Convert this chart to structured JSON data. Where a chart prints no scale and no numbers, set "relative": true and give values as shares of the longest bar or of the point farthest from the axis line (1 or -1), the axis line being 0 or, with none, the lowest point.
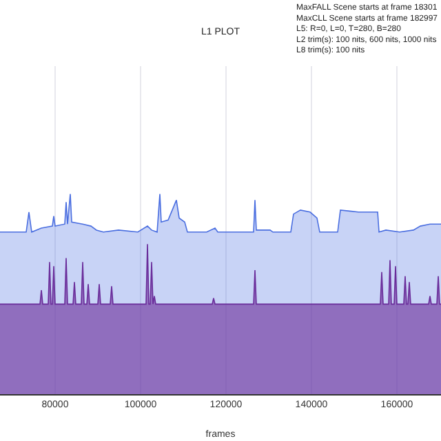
{
  "chart_data": {
    "type": "area",
    "relative": true,
    "title": "L1 PLOT",
    "xlabel": "frames",
    "annotations": [
      "MaxFALL Scene starts at frame 18301",
      "MaxCLL Scene starts at frame 182997",
      "L5: R=0, L=0, T=280, B=280",
      "L2 trim(s): 100 nits, 600 nits, 1000 nits",
      "L8 trim(s): 100 nits"
    ],
    "xlim": [
      67100,
      170330
    ],
    "xticks": [
      80000,
      100000,
      120000,
      140000,
      160000
    ],
    "grid": "x",
    "series": [
      {
        "color": "#4a6ee0",
        "x": [
          67100,
          73230,
          73870,
          74520,
          76780,
          79360,
          79680,
          80000,
          82260,
          82580,
          82910,
          83550,
          83880,
          86460,
          88390,
          89680,
          91300,
          94840,
          99360,
          101620,
          102590,
          103880,
          104520,
          104840,
          106460,
          108390,
          109040,
          110330,
          110970,
          115490,
          117430,
          118070,
          126460,
          126780,
          127100,
          130330,
          130970,
          135170,
          135810,
          137430,
          139690,
          141300,
          141940,
          146140,
          146780,
          150980,
          155500,
          155820,
          157430,
          160650,
          163880,
          165490,
          167750,
          170330
        ],
        "values": [
          0.81,
          0.81,
          0.91,
          0.81,
          0.83,
          0.84,
          0.89,
          0.84,
          0.85,
          0.96,
          0.85,
          1.0,
          0.86,
          0.85,
          0.84,
          0.82,
          0.81,
          0.82,
          0.81,
          0.84,
          0.82,
          0.81,
          1.0,
          0.86,
          0.87,
          0.97,
          0.88,
          0.86,
          0.81,
          0.81,
          0.83,
          0.81,
          0.81,
          0.97,
          0.82,
          0.82,
          0.81,
          0.81,
          0.9,
          0.92,
          0.91,
          0.88,
          0.81,
          0.81,
          0.92,
          0.91,
          0.91,
          0.81,
          0.82,
          0.81,
          0.82,
          0.84,
          0.85,
          0.85
        ]
      },
      {
        "color": "#6a2c9a",
        "x": [
          67100,
          76460,
          76780,
          77100,
          78390,
          78710,
          79030,
          79360,
          79680,
          80000,
          82260,
          82580,
          82910,
          84200,
          84520,
          84840,
          86130,
          86460,
          86780,
          87430,
          87750,
          88070,
          90000,
          90330,
          90650,
          92900,
          93230,
          93550,
          101290,
          101620,
          101940,
          102260,
          102590,
          102910,
          103230,
          103550,
          116780,
          117100,
          117430,
          126460,
          126780,
          127100,
          156130,
          156460,
          156780,
          158070,
          158390,
          158710,
          159360,
          159680,
          160000,
          161610,
          161940,
          162260,
          162580,
          162910,
          163230,
          167430,
          167750,
          168070,
          169360,
          169690,
          170000,
          170330
        ],
        "values": [
          0.45,
          0.45,
          0.52,
          0.45,
          0.45,
          0.66,
          0.45,
          0.45,
          0.64,
          0.45,
          0.45,
          0.68,
          0.45,
          0.45,
          0.56,
          0.45,
          0.45,
          0.66,
          0.45,
          0.45,
          0.55,
          0.45,
          0.45,
          0.55,
          0.45,
          0.45,
          0.54,
          0.45,
          0.45,
          0.75,
          0.45,
          0.45,
          0.66,
          0.45,
          0.49,
          0.45,
          0.45,
          0.48,
          0.45,
          0.45,
          0.62,
          0.45,
          0.45,
          0.61,
          0.45,
          0.45,
          0.67,
          0.45,
          0.45,
          0.64,
          0.45,
          0.45,
          0.59,
          0.45,
          0.45,
          0.56,
          0.45,
          0.45,
          0.49,
          0.45,
          0.45,
          0.59,
          0.45,
          0.45
        ]
      }
    ]
  }
}
